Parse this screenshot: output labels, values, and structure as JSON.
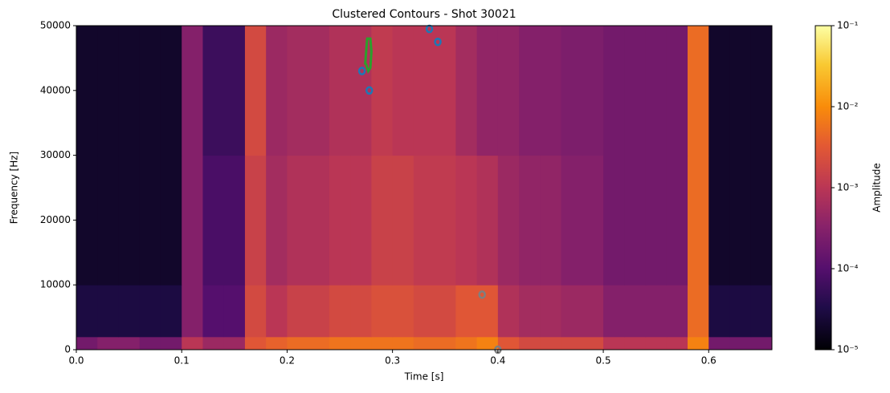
{
  "chart_data": {
    "type": "spectrogram",
    "title": "Clustered Contours - Shot 30021",
    "xlabel": "Time [s]",
    "ylabel": "Frequency [Hz]",
    "colorbar_label": "Amplitude",
    "xlim": [
      0,
      0.66
    ],
    "ylim": [
      0,
      50000
    ],
    "xticks": [
      {
        "value": 0,
        "label": "0.0"
      },
      0.1,
      0.2,
      0.3,
      0.4,
      0.5,
      0.6
    ],
    "yticks": [
      0,
      10000,
      20000,
      30000,
      40000,
      50000
    ],
    "clim": [
      1e-05,
      0.1
    ],
    "color_scale": "log",
    "colormap": "inferno",
    "cticks": [
      {
        "value": 1e-05,
        "label": "10⁻⁵"
      },
      {
        "value": 0.0001,
        "label": "10⁻⁴"
      },
      {
        "value": 0.001,
        "label": "10⁻³"
      },
      {
        "value": 0.01,
        "label": "10⁻²"
      },
      {
        "value": 0.1,
        "label": "10⁻¹"
      }
    ],
    "time_bins": [
      0,
      0.02,
      0.04,
      0.06,
      0.08,
      0.1,
      0.12,
      0.14,
      0.16,
      0.18,
      0.2,
      0.22,
      0.24,
      0.26,
      0.28,
      0.3,
      0.32,
      0.34,
      0.36,
      0.38,
      0.4,
      0.42,
      0.44,
      0.46,
      0.48,
      0.5,
      0.52,
      0.54,
      0.56,
      0.58,
      0.6,
      0.62,
      0.64,
      0.66
    ],
    "freq_bins": [
      0,
      2000,
      10000,
      30000,
      50000
    ],
    "values": [
      [
        0.0002,
        0.0003,
        0.0003,
        0.0002,
        0.0002,
        0.001,
        0.0005,
        0.0005,
        0.003,
        0.004,
        0.005,
        0.005,
        0.006,
        0.006,
        0.006,
        0.006,
        0.005,
        0.005,
        0.006,
        0.008,
        0.003,
        0.002,
        0.002,
        0.002,
        0.002,
        0.001,
        0.001,
        0.001,
        0.001,
        0.008,
        0.0002,
        0.0002,
        0.0002
      ],
      [
        3e-05,
        3e-05,
        3e-05,
        3e-05,
        3e-05,
        0.0003,
        0.0001,
        0.0001,
        0.002,
        0.001,
        0.0015,
        0.0015,
        0.002,
        0.002,
        0.0025,
        0.0025,
        0.002,
        0.002,
        0.003,
        0.003,
        0.0008,
        0.0006,
        0.0006,
        0.0005,
        0.0005,
        0.0003,
        0.0003,
        0.0003,
        0.0003,
        0.005,
        3e-05,
        3e-05,
        3e-05
      ],
      [
        2e-05,
        2e-05,
        2e-05,
        2e-05,
        2e-05,
        0.0003,
        8e-05,
        8e-05,
        0.0015,
        0.0006,
        0.0008,
        0.0008,
        0.001,
        0.001,
        0.0015,
        0.0015,
        0.0012,
        0.0012,
        0.001,
        0.0008,
        0.0005,
        0.0004,
        0.0004,
        0.0003,
        0.0003,
        0.0002,
        0.0002,
        0.0002,
        0.0002,
        0.005,
        2e-05,
        2e-05,
        2e-05
      ],
      [
        2e-05,
        2e-05,
        2e-05,
        2e-05,
        2e-05,
        0.0003,
        6e-05,
        6e-05,
        0.002,
        0.0005,
        0.0006,
        0.0006,
        0.0008,
        0.0008,
        0.0012,
        0.001,
        0.001,
        0.001,
        0.0006,
        0.0004,
        0.0004,
        0.0003,
        0.0003,
        0.00025,
        0.00025,
        0.0002,
        0.0002,
        0.0002,
        0.0002,
        0.005,
        2e-05,
        2e-05,
        2e-05
      ]
    ],
    "contours": [
      {
        "color": "#2ca02c",
        "x": [
          0.274,
          0.276,
          0.279,
          0.28,
          0.279,
          0.277,
          0.275,
          0.274
        ],
        "y": [
          44000,
          48000,
          48000,
          46000,
          43500,
          43000,
          44000,
          44000
        ]
      },
      {
        "color": "#1f77b4",
        "x": [
          0.271,
          0.278,
          0.335,
          0.343
        ],
        "y": [
          43000,
          40000,
          49500,
          47500
        ]
      },
      {
        "color": "#7f7f7f",
        "x": [
          0.385,
          0.4
        ],
        "y": [
          8500,
          0
        ]
      }
    ]
  }
}
